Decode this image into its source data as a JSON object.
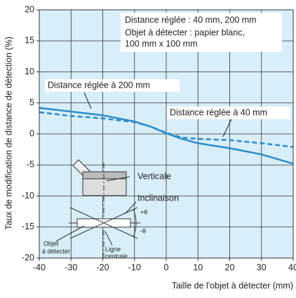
{
  "chart_data": {
    "type": "line",
    "x_label": "Taille de l'objet à détecter (mm)",
    "y_label": "Taux de modification de distance de détection (%)",
    "x": [
      -40,
      -30,
      -20,
      -10,
      -5,
      0,
      5,
      10,
      20,
      30,
      40
    ],
    "series": [
      {
        "name": "Distance réglée à 200 mm",
        "color": "#2b8ccc",
        "dash": false,
        "values": [
          4.2,
          3.6,
          3.0,
          2.0,
          1.2,
          0.1,
          -0.8,
          -1.5,
          -2.3,
          -3.3,
          -4.8
        ]
      },
      {
        "name": "Distance réglée à 40 mm",
        "color": "#2b8ccc",
        "dash": true,
        "values": [
          3.5,
          2.9,
          2.5,
          1.9,
          1.2,
          0.2,
          -0.6,
          -0.8,
          -1.0,
          -1.5,
          -2.1
        ]
      }
    ],
    "xlim": [
      -40,
      40
    ],
    "xticks": [
      -40,
      -30,
      -20,
      -10,
      0,
      10,
      20,
      30,
      40
    ],
    "ylim": [
      -20,
      20
    ],
    "yticks": [
      -20,
      -15,
      -10,
      -5,
      0,
      5,
      10,
      15,
      20
    ],
    "grid": true,
    "annotations": [
      "Distance réglée : 40 mm, 200 mm",
      "Objet à détecter : papier blanc,",
      "100 mm x 100 mm"
    ],
    "diagram_labels": {
      "vertical": "Verticale",
      "tilt": "Inclinaison",
      "plus": "+θ",
      "minus": "-θ",
      "object": [
        "Objet",
        "à détecter"
      ],
      "center": [
        "Ligne",
        "centrale"
      ]
    }
  }
}
